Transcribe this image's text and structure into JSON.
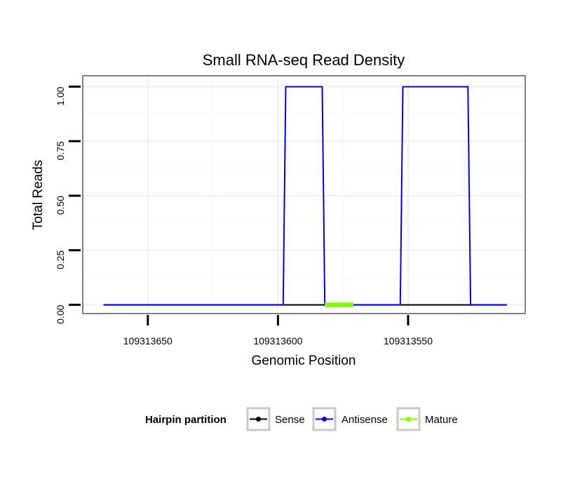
{
  "chart_data": {
    "type": "line",
    "title": "Small RNA-seq Read Density",
    "xlabel": "Genomic Position",
    "ylabel": "Total Reads",
    "x_reversed": true,
    "xlim": [
      109313675,
      109313505
    ],
    "ylim": [
      -0.04,
      1.05
    ],
    "x_ticks": [
      109313650,
      109313600,
      109313550
    ],
    "x_tick_labels": [
      "109313650",
      "109313600",
      "109313550"
    ],
    "y_ticks": [
      0,
      0.25,
      0.5,
      0.75,
      1.0
    ],
    "y_tick_labels": [
      "0.00",
      "0.25",
      "0.50",
      "0.75",
      "1.00"
    ],
    "grid": true,
    "legend": {
      "title": "Hairpin partition",
      "position": "bottom",
      "entries": [
        "Sense",
        "Antisense",
        "Mature"
      ]
    },
    "series": [
      {
        "name": "Sense",
        "color": "#000000",
        "x": [
          109313667,
          109313512
        ],
        "y": [
          0,
          0
        ]
      },
      {
        "name": "Antisense",
        "color": "#0000ff",
        "x": [
          109313667,
          109313598,
          109313597,
          109313583,
          109313582,
          109313553,
          109313552,
          109313527,
          109313526,
          109313512
        ],
        "y": [
          0,
          0,
          1,
          1,
          0,
          0,
          1,
          1,
          0,
          0
        ]
      },
      {
        "name": "Mature",
        "color": "#7fff00",
        "x": [
          109313582,
          109313571
        ],
        "y": [
          0,
          0
        ]
      }
    ]
  }
}
